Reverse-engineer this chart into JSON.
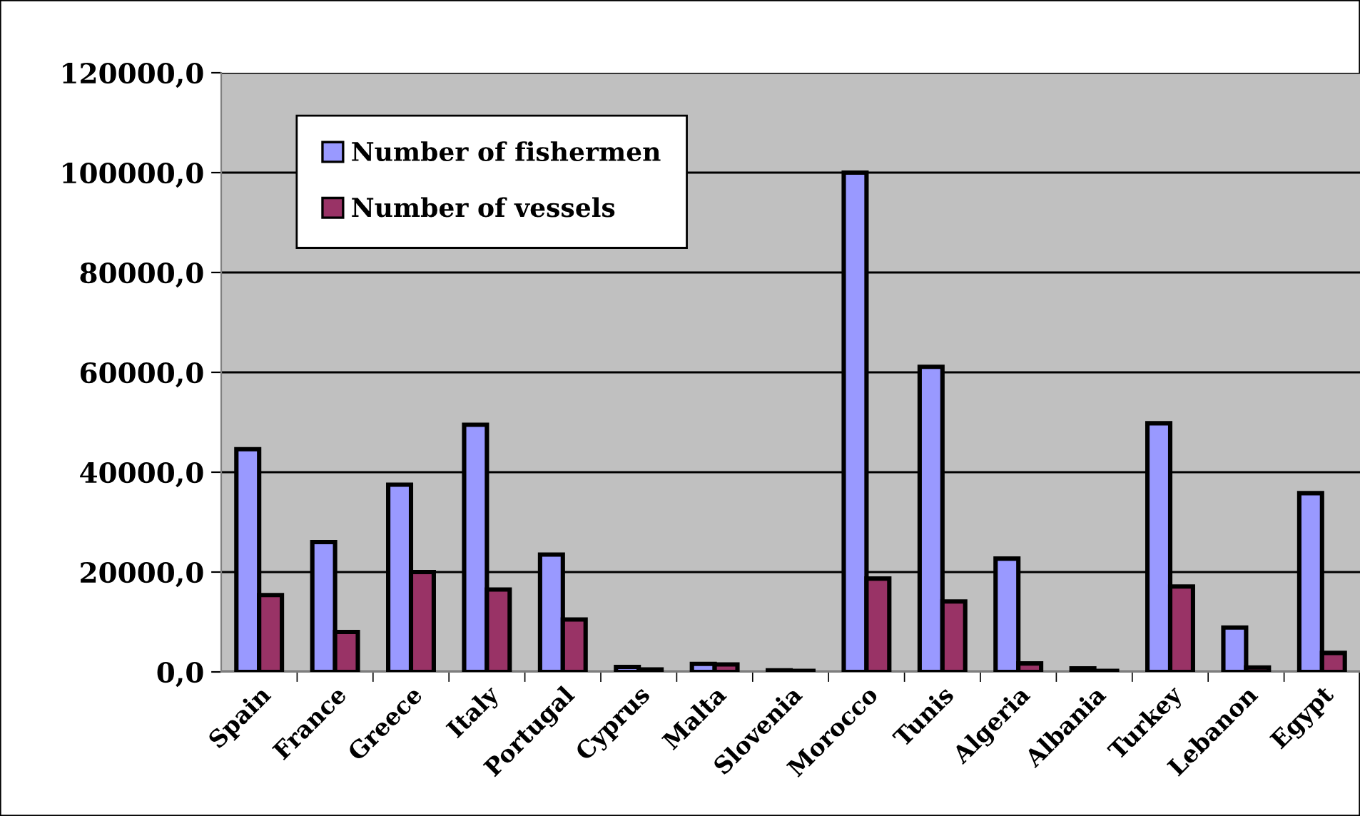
{
  "chart_data": {
    "type": "bar",
    "categories": [
      "Spain",
      "France",
      "Greece",
      "Italy",
      "Portugal",
      "Cyprus",
      "Malta",
      "Slovenia",
      "Morocco",
      "Tunis",
      "Algeria",
      "Albania",
      "Turkey",
      "Lebanon",
      "Egypt"
    ],
    "series": [
      {
        "name": "Number of fishermen",
        "color": "#9999ff",
        "values": [
          44600,
          26000,
          37500,
          49500,
          23500,
          1000,
          1600,
          300,
          100000,
          61100,
          22700,
          700,
          49800,
          8900,
          35800
        ]
      },
      {
        "name": "Number of vessels",
        "color": "#993366",
        "values": [
          15400,
          8000,
          20000,
          16500,
          10500,
          500,
          1500,
          200,
          18700,
          14100,
          1700,
          200,
          17100,
          900,
          3800
        ]
      }
    ],
    "ylim": [
      0,
      120000
    ],
    "yticks": [
      {
        "value": 0,
        "label": "0,0"
      },
      {
        "value": 20000,
        "label": "20000,0"
      },
      {
        "value": 40000,
        "label": "40000,0"
      },
      {
        "value": 60000,
        "label": "60000,0"
      },
      {
        "value": 80000,
        "label": "80000,0"
      },
      {
        "value": 100000,
        "label": "100000,0"
      },
      {
        "value": 120000,
        "label": "120000,0"
      }
    ],
    "grid": "y",
    "legend": "top left"
  }
}
